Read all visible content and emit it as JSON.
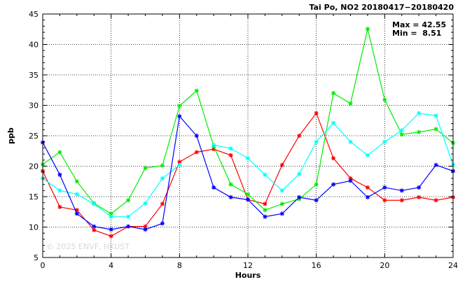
{
  "chart_data": {
    "type": "line",
    "title": "Tai Po, NO2 20180417−20180420",
    "xlabel": "Hours",
    "ylabel": "ppb",
    "xlim": [
      0,
      24
    ],
    "ylim": [
      5,
      45
    ],
    "xticks": [
      0,
      4,
      8,
      12,
      16,
      20,
      24
    ],
    "yticks": [
      5,
      10,
      15,
      20,
      25,
      30,
      35,
      40,
      45
    ],
    "grid": true,
    "max_label": "Max = 42.55",
    "min_label": "Min =  8.51",
    "watermark": "© 2025  ENVF, HKUST",
    "x": [
      0,
      1,
      2,
      3,
      4,
      5,
      6,
      7,
      8,
      9,
      10,
      11,
      12,
      13,
      14,
      15,
      16,
      17,
      18,
      19,
      20,
      21,
      22,
      23,
      24
    ],
    "series": [
      {
        "color": "#ff0000",
        "values": [
          19.2,
          13.3,
          12.8,
          9.5,
          8.51,
          10.1,
          10.1,
          13.8,
          20.7,
          22.3,
          22.8,
          21.8,
          14.5,
          13.8,
          20.2,
          25.0,
          28.7,
          21.3,
          18.0,
          16.5,
          14.4,
          14.4,
          14.9,
          14.4,
          14.9
        ]
      },
      {
        "color": "#00ee00",
        "values": [
          20.3,
          22.3,
          17.5,
          13.9,
          12.2,
          14.4,
          19.7,
          20.1,
          29.9,
          32.4,
          23.3,
          17.0,
          15.4,
          12.8,
          13.8,
          14.6,
          17.0,
          32.0,
          30.3,
          42.55,
          30.9,
          25.2,
          25.6,
          26.1,
          23.8
        ]
      },
      {
        "color": "#00ffff",
        "values": [
          18.0,
          16.0,
          15.4,
          13.8,
          11.7,
          11.7,
          13.9,
          18.0,
          20.2,
          null,
          23.5,
          22.9,
          21.3,
          18.6,
          16.0,
          18.7,
          24.0,
          27.1,
          24.0,
          21.8,
          24.0,
          25.9,
          28.7,
          28.3,
          20.2
        ]
      },
      {
        "color": "#0000ff",
        "values": [
          23.9,
          18.6,
          12.2,
          10.1,
          9.6,
          10.1,
          9.6,
          10.6,
          28.2,
          25.0,
          16.5,
          14.9,
          14.5,
          11.7,
          12.2,
          14.9,
          14.4,
          17.0,
          17.6,
          14.9,
          16.5,
          16.0,
          16.5,
          20.2,
          19.2
        ]
      }
    ]
  }
}
